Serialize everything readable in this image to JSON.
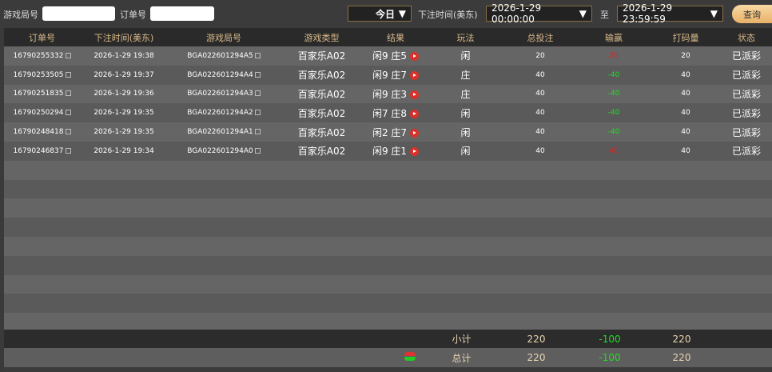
{
  "filters": {
    "round_label": "游戏局号",
    "round_value": "",
    "order_label": "订单号",
    "order_value": "",
    "period": "今日",
    "time_label": "下注时间(美东)",
    "start": "2026-1-29 00:00:00",
    "to_label": "至",
    "end": "2026-1-29 23:59:59",
    "query": "查询"
  },
  "columns": [
    "订单号",
    "下注时间(美东)",
    "游戏局号",
    "游戏类型",
    "结果",
    "玩法",
    "总投注",
    "输赢",
    "打码量",
    "状态"
  ],
  "rows": [
    {
      "order": "16790255332",
      "time": "2026-1-29 19:38",
      "round": "BGA022601294A5",
      "type": "百家乐A02",
      "result": "闲9 庄5",
      "play": "闲",
      "bet": "20",
      "winloss": "20",
      "winloss_color": "red",
      "valid": "20",
      "status": "已派彩"
    },
    {
      "order": "16790253505",
      "time": "2026-1-29 19:37",
      "round": "BGA022601294A4",
      "type": "百家乐A02",
      "result": "闲9 庄7",
      "play": "庄",
      "bet": "40",
      "winloss": "-40",
      "winloss_color": "green",
      "valid": "40",
      "status": "已派彩"
    },
    {
      "order": "16790251835",
      "time": "2026-1-29 19:36",
      "round": "BGA022601294A3",
      "type": "百家乐A02",
      "result": "闲9 庄3",
      "play": "庄",
      "bet": "40",
      "winloss": "-40",
      "winloss_color": "green",
      "valid": "40",
      "status": "已派彩"
    },
    {
      "order": "16790250294",
      "time": "2026-1-29 19:35",
      "round": "BGA022601294A2",
      "type": "百家乐A02",
      "result": "闲7 庄8",
      "play": "闲",
      "bet": "40",
      "winloss": "-40",
      "winloss_color": "green",
      "valid": "40",
      "status": "已派彩"
    },
    {
      "order": "16790248418",
      "time": "2026-1-29 19:35",
      "round": "BGA022601294A1",
      "type": "百家乐A02",
      "result": "闲2 庄7",
      "play": "闲",
      "bet": "40",
      "winloss": "-40",
      "winloss_color": "green",
      "valid": "40",
      "status": "已派彩"
    },
    {
      "order": "16790246837",
      "time": "2026-1-29 19:34",
      "round": "BGA022601294A0",
      "type": "百家乐A02",
      "result": "闲9 庄1",
      "play": "闲",
      "bet": "40",
      "winloss": "40",
      "winloss_color": "red",
      "valid": "40",
      "status": "已派彩"
    }
  ],
  "subtotal": {
    "label": "小计",
    "bet": "220",
    "winloss": "-100",
    "valid": "220"
  },
  "total": {
    "label": "总计",
    "bet": "220",
    "winloss": "-100",
    "valid": "220"
  }
}
